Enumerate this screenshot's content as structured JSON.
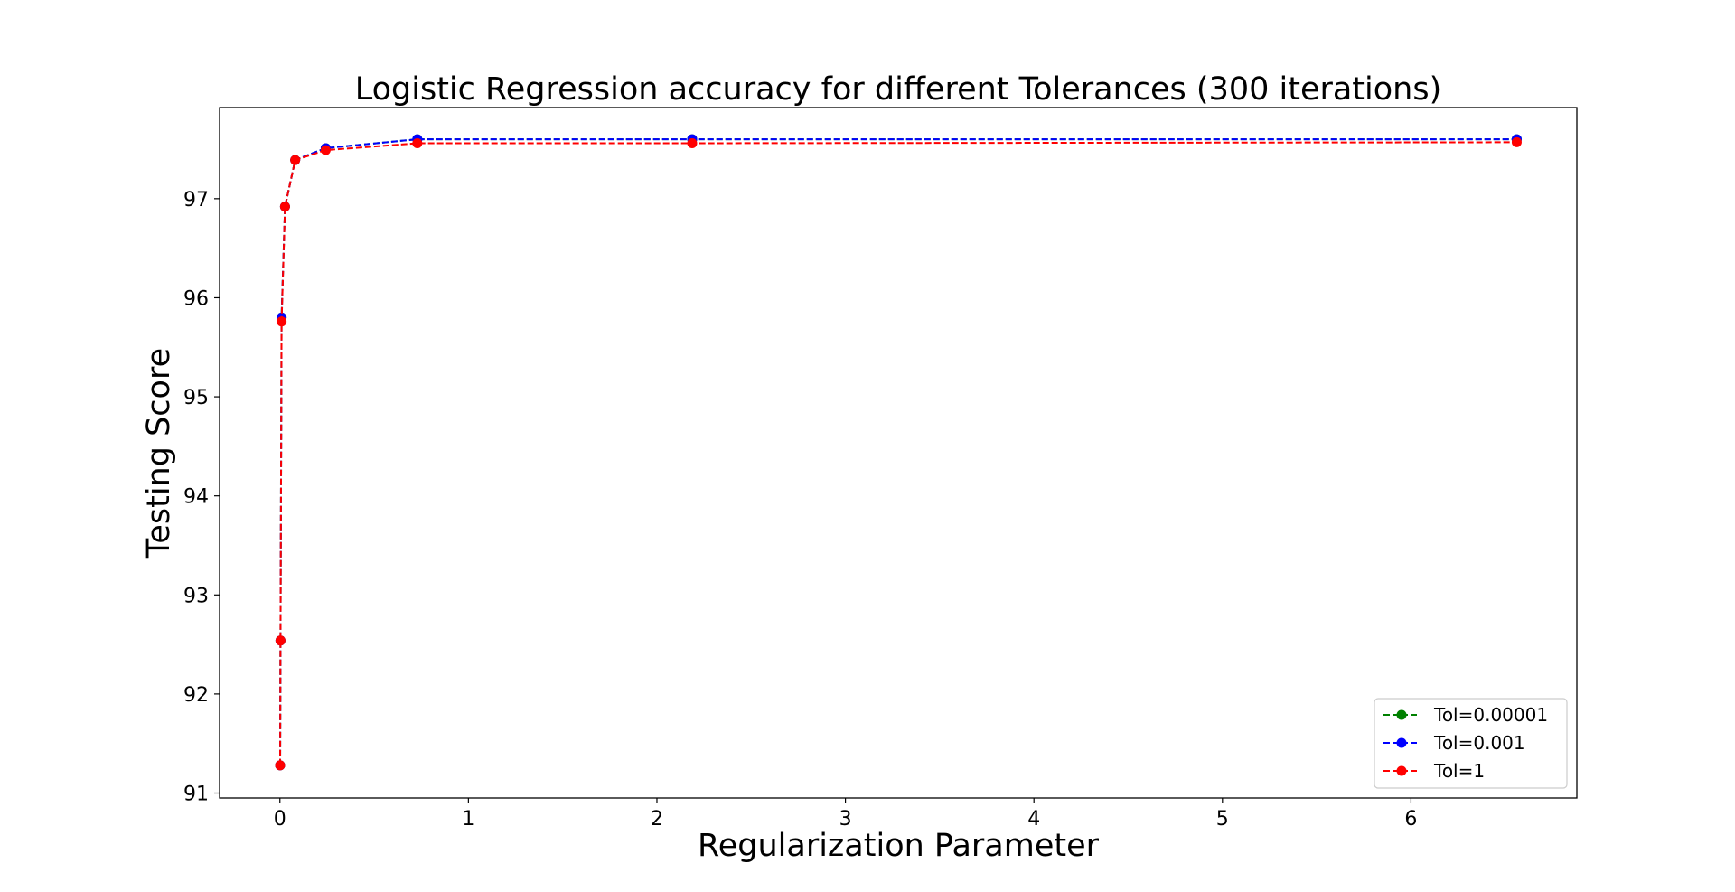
{
  "chart_data": {
    "type": "line",
    "title": "Logistic Regression accuracy for different Tolerances (300 iterations)",
    "xlabel": "Regularization Parameter",
    "ylabel": "Testing Score",
    "xlim": [
      -0.32,
      6.88
    ],
    "ylim": [
      90.95,
      97.92
    ],
    "xticks": [
      0,
      1,
      2,
      3,
      4,
      5,
      6
    ],
    "yticks": [
      91,
      92,
      93,
      94,
      95,
      96,
      97
    ],
    "grid": false,
    "legend_position": "lower right",
    "line_style": "dashed",
    "marker": "circle",
    "x": [
      0.001,
      0.003,
      0.009,
      0.027,
      0.081,
      0.243,
      0.729,
      2.187,
      6.561
    ],
    "series": [
      {
        "name": "Tol=0.00001",
        "color": "#008000",
        "values": [
          91.28,
          92.54,
          95.8,
          96.92,
          97.39,
          97.51,
          97.6,
          97.6,
          97.6
        ]
      },
      {
        "name": "Tol=0.001",
        "color": "#0000ff",
        "values": [
          91.28,
          92.54,
          95.8,
          96.92,
          97.39,
          97.51,
          97.6,
          97.6,
          97.6
        ]
      },
      {
        "name": "Tol=1",
        "color": "#ff0000",
        "values": [
          91.28,
          92.54,
          95.76,
          96.92,
          97.39,
          97.49,
          97.56,
          97.56,
          97.57
        ]
      }
    ]
  }
}
